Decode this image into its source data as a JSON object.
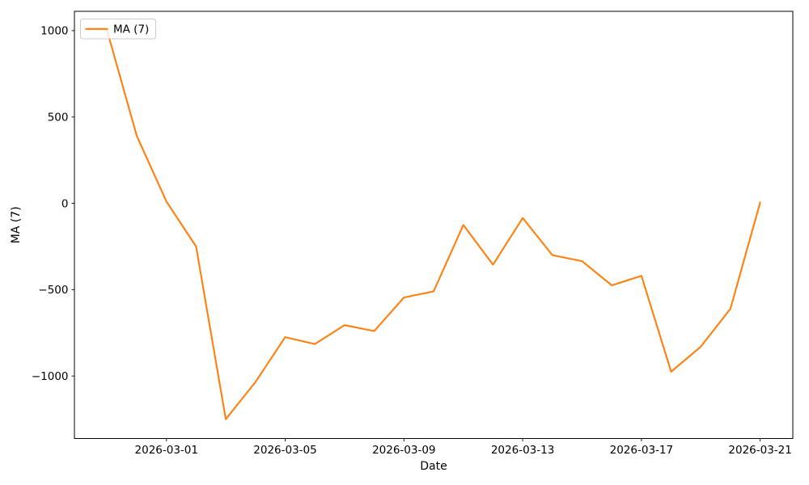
{
  "figure": {
    "background": "#ffffff",
    "legend": {
      "label": "MA (7)",
      "position": "upper-left",
      "border_color": "#cccccc",
      "fill": "rgba(255,255,255,0.8)"
    }
  },
  "chart_data": {
    "type": "line",
    "title": "",
    "xlabel": "Date",
    "ylabel": "MA (7)",
    "grid": false,
    "legend_position": "upper-left",
    "axis_color": "#000000",
    "tick_label_color": "#000000",
    "ylim": [
      -1362,
      1112
    ],
    "x_margin": 1.1,
    "y_ticks": [
      1000,
      500,
      0,
      -500,
      -1000
    ],
    "x_tick_labels": [
      "2026-03-01",
      "2026-03-05",
      "2026-03-09",
      "2026-03-13",
      "2026-03-17",
      "2026-03-21"
    ],
    "series": [
      {
        "name": "MA (7)",
        "color": "#ff7f0e",
        "x": [
          "2026-02-27",
          "2026-02-28",
          "2026-03-01",
          "2026-03-02",
          "2026-03-03",
          "2026-03-04",
          "2026-03-05",
          "2026-03-06",
          "2026-03-07",
          "2026-03-08",
          "2026-03-09",
          "2026-03-10",
          "2026-03-11",
          "2026-03-12",
          "2026-03-13",
          "2026-03-14",
          "2026-03-15",
          "2026-03-16",
          "2026-03-17",
          "2026-03-18",
          "2026-03-19",
          "2026-03-20",
          "2026-03-21"
        ],
        "values": [
          1000,
          390,
          10,
          -250,
          -1250,
          -1035,
          -775,
          -815,
          -705,
          -740,
          -545,
          -510,
          -125,
          -355,
          -85,
          -300,
          -335,
          -475,
          -420,
          -975,
          -830,
          -610,
          5
        ]
      }
    ]
  }
}
